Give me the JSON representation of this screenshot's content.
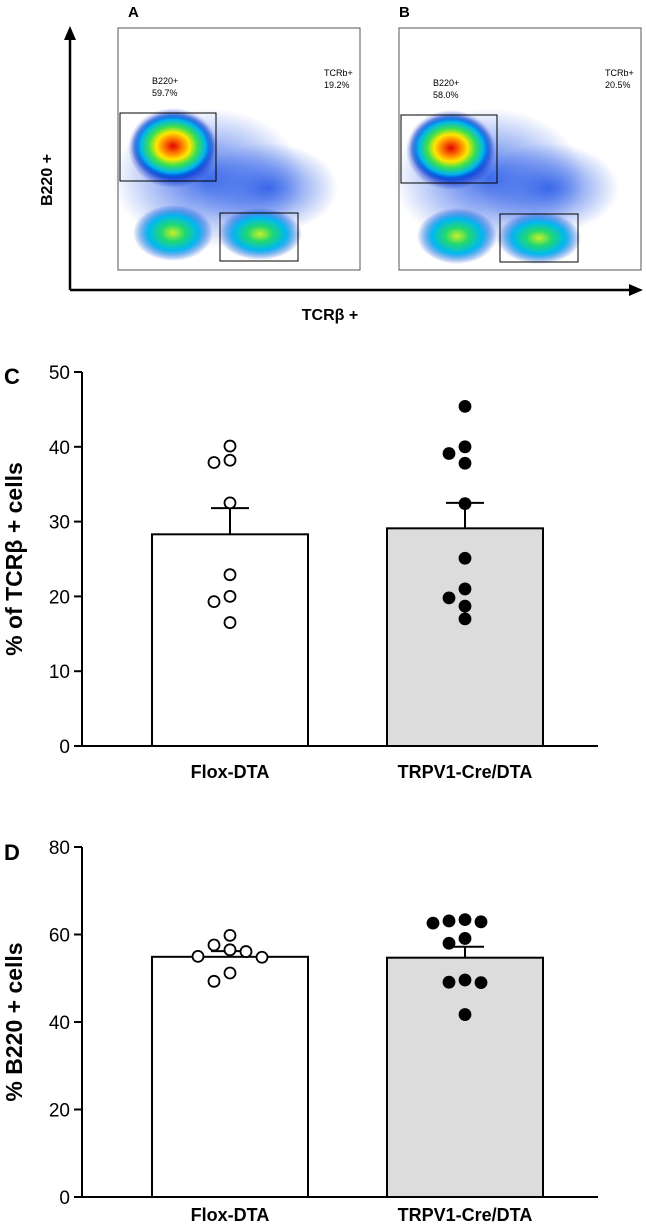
{
  "flow": {
    "x_axis_label": "TCRβ +",
    "y_axis_label": "B220 +",
    "plots": [
      {
        "letter": "A",
        "gate_b220_label": "B220+",
        "gate_b220_value": "59.7%",
        "gate_tcrb_label": "TCRb+",
        "gate_tcrb_value": "19.2%"
      },
      {
        "letter": "B",
        "gate_b220_label": "B220+",
        "gate_b220_value": "58.0%",
        "gate_tcrb_label": "TCRb+",
        "gate_tcrb_value": "20.5%"
      }
    ]
  },
  "chart_data": [
    {
      "type": "bar",
      "panel": "C",
      "title": "",
      "xlabel": "",
      "ylabel": "% of TCRβ + cells",
      "ylim": [
        0,
        50
      ],
      "yticks": [
        0,
        10,
        20,
        30,
        40,
        50
      ],
      "categories": [
        "Flox-DTA",
        "TRPV1-Cre/DTA"
      ],
      "values": [
        28.3,
        29.1
      ],
      "sem": [
        3.5,
        3.4
      ],
      "bar_colors": [
        "#ffffff",
        "#dcdcdc"
      ],
      "points": [
        [
          40.1,
          38.2,
          37.9,
          32.5,
          22.9,
          20.0,
          19.3,
          16.5
        ],
        [
          45.4,
          40.0,
          39.1,
          37.8,
          32.4,
          25.1,
          21.0,
          19.8,
          18.7,
          17.0
        ]
      ],
      "point_fill": [
        "#ffffff",
        "#000000"
      ]
    },
    {
      "type": "bar",
      "panel": "D",
      "title": "",
      "xlabel": "",
      "ylabel": "% B220 + cells",
      "ylim": [
        0,
        80
      ],
      "yticks": [
        0,
        20,
        40,
        60,
        80
      ],
      "categories": [
        "Flox-DTA",
        "TRPV1-Cre/DTA"
      ],
      "values": [
        54.9,
        54.7
      ],
      "sem": [
        1.3,
        2.5
      ],
      "bar_colors": [
        "#ffffff",
        "#dcdcdc"
      ],
      "points": [
        [
          59.8,
          57.6,
          56.5,
          56.1,
          55.0,
          54.8,
          51.2,
          49.3
        ],
        [
          63.4,
          63.1,
          62.9,
          62.6,
          59.1,
          58.0,
          49.6,
          49.1,
          49.0,
          41.7
        ]
      ],
      "point_fill": [
        "#ffffff",
        "#000000"
      ]
    }
  ]
}
